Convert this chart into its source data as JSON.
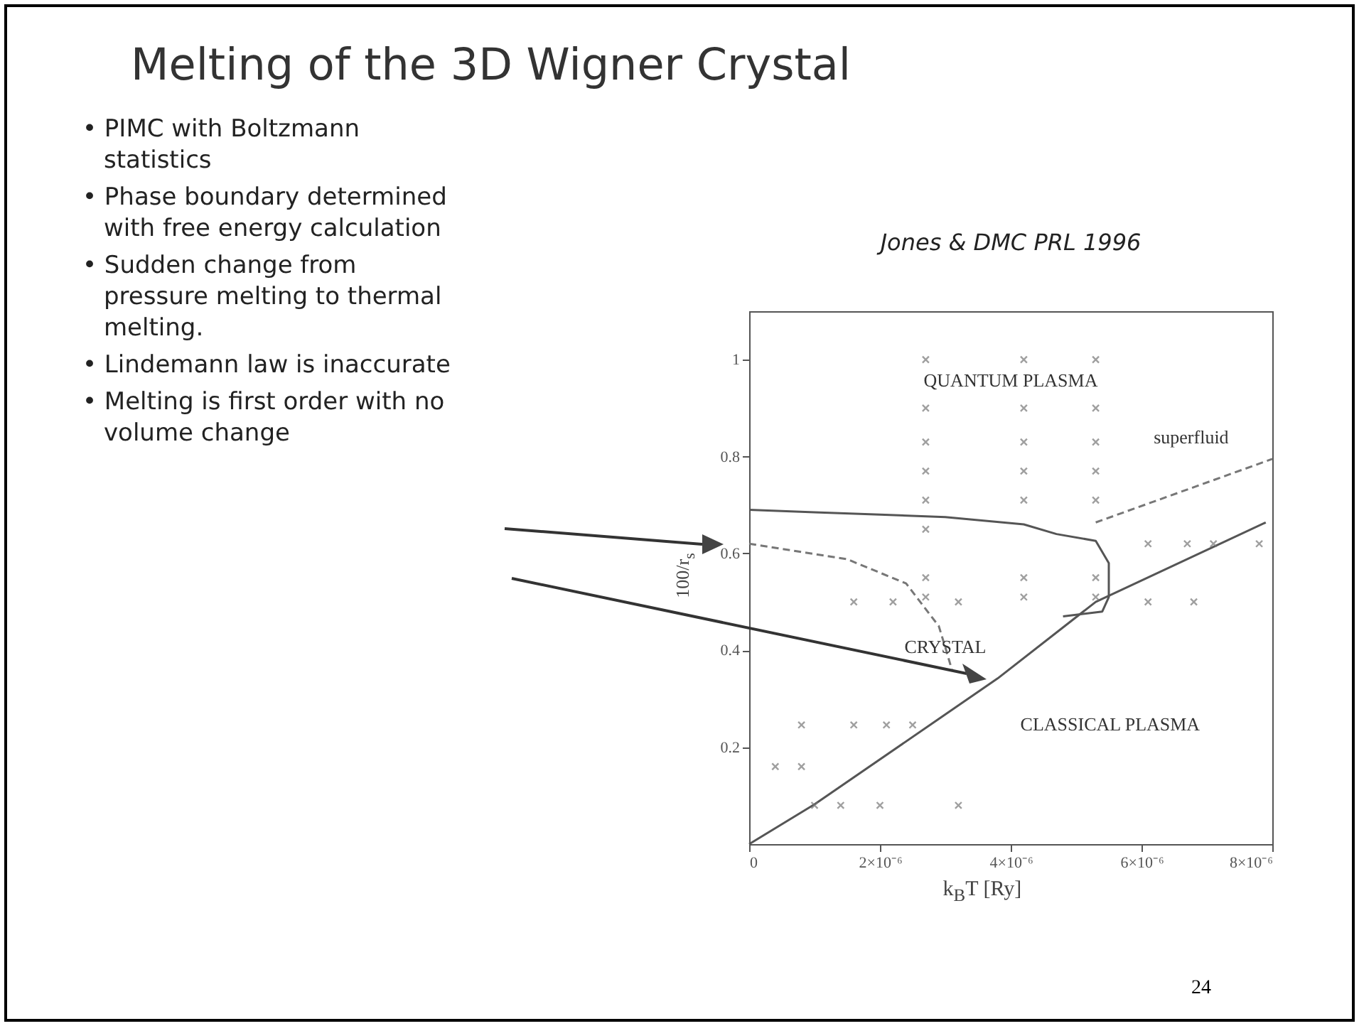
{
  "chart_data": {
    "type": "line",
    "title": "Melting of the 3D Wigner Crystal",
    "subtitle": "Jones & DMC PRL 1996",
    "xlabel": "k$_{B}$T [Ry]",
    "ylabel": "100/r$_{s}$",
    "xlim": [
      0,
      8e-06
    ],
    "ylim": [
      0,
      1.1
    ],
    "xticks": [
      0,
      {
        "value": 2e-06,
        "label": "2×10⁻⁶"
      },
      {
        "value": 4e-06,
        "label": "4×10⁻⁶"
      },
      {
        "value": 6e-06,
        "label": "6×10⁻⁶"
      },
      {
        "value": 8e-06,
        "label": "8×10⁻⁶"
      }
    ],
    "yticks": [
      0.2,
      0.4,
      0.6,
      0.8,
      1
    ],
    "grid": false,
    "series": [
      {
        "line_style": "solid",
        "color": "#555555",
        "x": [
          0,
          1e-06,
          2e-06,
          3e-06,
          4.2e-06,
          4.7e-06,
          5.3e-06,
          5.5e-06,
          5.5e-06,
          5.4e-06,
          4.8e-06
        ],
        "values": [
          0.69,
          0.685,
          0.68,
          0.675,
          0.66,
          0.64,
          0.626,
          0.58,
          0.51,
          0.48,
          0.47
        ]
      },
      {
        "line_style": "dashed",
        "color": "#777777",
        "x": [
          0,
          1.5e-06,
          2.4e-06,
          2.9e-06,
          3e-06,
          3.1e-06
        ],
        "values": [
          0.62,
          0.588,
          0.538,
          0.45,
          0.406,
          0.36
        ]
      },
      {
        "line_style": "solid",
        "color": "#555555",
        "x": [
          0,
          1e-06,
          3.8e-06,
          5.3e-06,
          7.9e-06
        ],
        "values": [
          0,
          0.082,
          0.342,
          0.5,
          0.664
        ]
      },
      {
        "line_style": "dashed",
        "color": "#777777",
        "x": [
          5.3e-06,
          8e-06
        ],
        "values": [
          0.664,
          0.795
        ]
      },
      {
        "type": "scatter",
        "marker": "cross",
        "color": "#777777",
        "x": [
          2.7e-06,
          2.7e-06,
          2.7e-06,
          2.7e-06,
          2.7e-06,
          2.7e-06,
          2.7e-06,
          2.7e-06,
          4.2e-06,
          4.2e-06,
          4.2e-06,
          4.2e-06,
          4.2e-06,
          4.2e-06,
          4.2e-06,
          5.3e-06,
          5.3e-06,
          5.3e-06,
          5.3e-06,
          5.3e-06,
          5.3e-06,
          5.3e-06,
          1.6e-06,
          2.2e-06,
          3.2e-06,
          6.1e-06,
          6.7e-06,
          7.1e-06,
          7.8e-06,
          6.1e-06,
          6.8e-06,
          8e-07,
          1.6e-06,
          2.1e-06,
          2.5e-06,
          4e-07,
          8e-07,
          1e-06,
          1.4e-06,
          2e-06,
          3.2e-06
        ],
        "values": [
          1,
          0.9,
          0.83,
          0.77,
          0.71,
          0.65,
          0.55,
          0.51,
          1,
          0.9,
          0.83,
          0.77,
          0.71,
          0.55,
          0.51,
          1,
          0.9,
          0.83,
          0.77,
          0.71,
          0.55,
          0.51,
          0.5,
          0.5,
          0.5,
          0.62,
          0.62,
          0.62,
          0.62,
          0.5,
          0.5,
          0.246,
          0.246,
          0.246,
          0.246,
          0.16,
          0.16,
          0.08,
          0.08,
          0.08,
          0.08
        ]
      }
    ],
    "annotations": [
      "• PIMC with Boltzmann statistics",
      "• Phase boundary determined with free energy calculation",
      "• Sudden change from pressure melting to thermal melting.",
      "• Lindemann law is inaccurate",
      "• Melting is first order with no volume change",
      "24",
      "QUANTUM PLASMA",
      "superfluid",
      "CRYSTAL",
      "CLASSICAL PLASMA"
    ]
  }
}
